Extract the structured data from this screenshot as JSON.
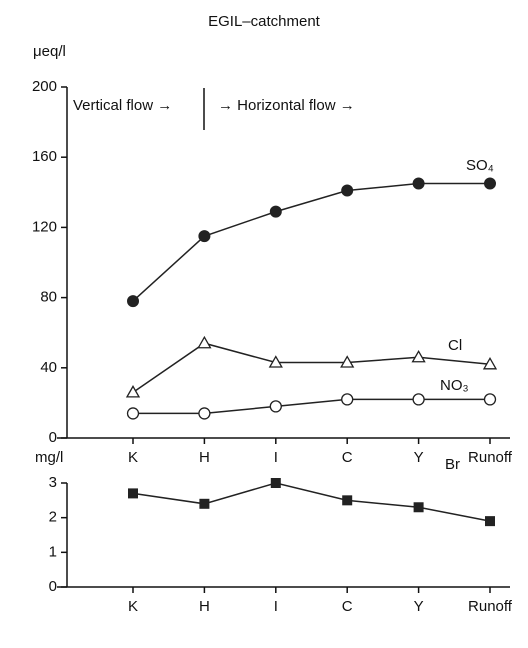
{
  "chart_data": [
    {
      "type": "line",
      "title": "EGIL–catchment",
      "ylabel": "μeq/l",
      "annotations": [
        "Vertical flow →",
        "→  Horizontal flow  →"
      ],
      "categories": [
        "K",
        "H",
        "I",
        "C",
        "Y",
        "Runoff"
      ],
      "series": [
        {
          "name": "SO₄",
          "color": "#222222",
          "marker": "filled-circle",
          "values": [
            78,
            115,
            129,
            141,
            145,
            145
          ]
        },
        {
          "name": "Cl",
          "color": "#222222",
          "marker": "open-triangle",
          "values": [
            26,
            54,
            43,
            43,
            46,
            42
          ]
        },
        {
          "name": "NO₃",
          "color": "#222222",
          "marker": "open-circle",
          "values": [
            14,
            14,
            18,
            22,
            22,
            22
          ]
        }
      ],
      "ylim": [
        0,
        200
      ],
      "yticks": [
        0,
        40,
        80,
        120,
        160,
        200
      ]
    },
    {
      "type": "line",
      "ylabel": "mg/l",
      "categories": [
        "K",
        "H",
        "I",
        "C",
        "Y",
        "Runoff"
      ],
      "series": [
        {
          "name": "Br",
          "color": "#222222",
          "marker": "filled-square",
          "values": [
            2.7,
            2.4,
            3.0,
            2.5,
            2.3,
            1.9
          ]
        }
      ],
      "ylim": [
        0,
        3
      ],
      "yticks": [
        0,
        1,
        2,
        3
      ]
    }
  ]
}
